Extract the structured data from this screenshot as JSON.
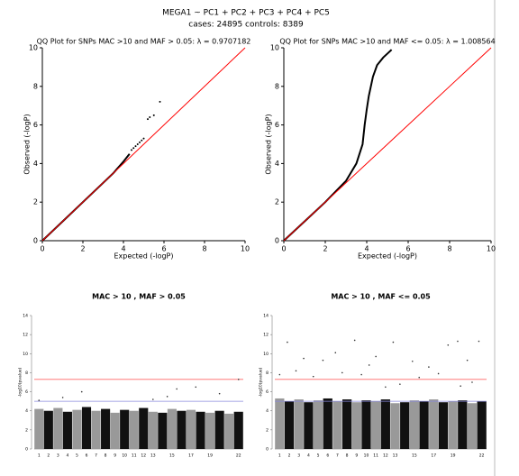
{
  "header": {
    "title": "MEGA1 ~ PC1 + PC2 + PC3 + PC4 + PC5",
    "subtitle": "cases: 24895  controls: 8389"
  },
  "chart_data": [
    {
      "type": "scatter",
      "title": "QQ Plot for SNPs MAC >10 and MAF > 0.05:  λ = 0.9707182",
      "xlabel": "Expected (-logP)",
      "ylabel": "Observed (-logP)",
      "xlim": [
        0,
        10
      ],
      "ylim": [
        0,
        10
      ],
      "xticks": [
        0,
        2,
        4,
        6,
        8,
        10
      ],
      "yticks": [
        0,
        2,
        4,
        6,
        8,
        10
      ],
      "series": [
        {
          "style": "line",
          "color": "#000000",
          "x": [
            0,
            1,
            2,
            3,
            3.5,
            4,
            4.3
          ],
          "values": [
            0,
            1,
            2,
            3,
            3.5,
            4.1,
            4.5
          ]
        },
        {
          "style": "points",
          "color": "#000000",
          "x": [
            4.4,
            4.5,
            4.6,
            4.7,
            4.8,
            4.9,
            5.0,
            5.2,
            5.3,
            5.5,
            5.8
          ],
          "values": [
            4.7,
            4.8,
            4.9,
            5.0,
            5.1,
            5.2,
            5.3,
            6.3,
            6.4,
            6.5,
            7.2
          ]
        },
        {
          "style": "line",
          "color": "#ff0000",
          "x": [
            0,
            10
          ],
          "values": [
            0,
            10
          ]
        }
      ]
    },
    {
      "type": "scatter",
      "title": "QQ Plot for SNPs MAC >10 and MAF <= 0.05:  λ = 1.008564",
      "xlabel": "Expected (-logP)",
      "ylabel": "Observed (-logP)",
      "xlim": [
        0,
        10
      ],
      "ylim": [
        0,
        10
      ],
      "xticks": [
        0,
        2,
        4,
        6,
        8,
        10
      ],
      "yticks": [
        0,
        2,
        4,
        6,
        8,
        10
      ],
      "series": [
        {
          "style": "line",
          "color": "#000000",
          "x": [
            0,
            1,
            2,
            3,
            3.5,
            3.8,
            3.9,
            4.0,
            4.1,
            4.3,
            4.5,
            4.8,
            5.0,
            5.2
          ],
          "values": [
            0,
            1,
            2,
            3.1,
            4,
            5,
            6,
            6.8,
            7.5,
            8.5,
            9.1,
            9.5,
            9.7,
            9.9
          ]
        },
        {
          "style": "line",
          "color": "#ff0000",
          "x": [
            0,
            10
          ],
          "values": [
            0,
            10
          ]
        }
      ]
    },
    {
      "type": "manhattan",
      "title": "MAC > 10 , MAF > 0.05",
      "ylabel": "-log10(pvalue)",
      "xlim": [
        0.5,
        22.5
      ],
      "ylim": [
        0,
        14
      ],
      "yticks": [
        0,
        2,
        4,
        6,
        8,
        10,
        12,
        14
      ],
      "categories": [
        "1",
        "2",
        "3",
        "4",
        "5",
        "6",
        "7",
        "8",
        "9",
        "10",
        "11",
        "12",
        "13",
        null,
        "15",
        null,
        "17",
        null,
        "19",
        null,
        null,
        "22"
      ],
      "values": [
        4.2,
        4.0,
        4.3,
        3.9,
        4.1,
        4.4,
        4.0,
        4.2,
        3.8,
        4.1,
        4.0,
        4.3,
        3.9,
        3.8,
        4.2,
        4.0,
        4.1,
        3.9,
        3.8,
        4.0,
        3.7,
        3.9
      ],
      "colors": [
        "#999999",
        "#111111"
      ],
      "points": {
        "color": "#333333",
        "x": [
          1,
          3.5,
          5.5,
          13,
          14.5,
          15.5,
          17.5,
          20,
          22
        ],
        "values": [
          5.1,
          5.4,
          6.0,
          5.2,
          5.5,
          6.3,
          6.5,
          5.8,
          7.3
        ]
      },
      "hlines": [
        {
          "value": 7.3,
          "color": "#ff6666"
        },
        {
          "value": 5,
          "color": "#8888dd"
        }
      ]
    },
    {
      "type": "manhattan",
      "title": "MAC > 10 , MAF <= 0.05",
      "ylabel": "-log10(pvalue)",
      "xlim": [
        0.5,
        22.5
      ],
      "ylim": [
        0,
        14
      ],
      "yticks": [
        0,
        2,
        4,
        6,
        8,
        10,
        12,
        14
      ],
      "categories": [
        "1",
        "2",
        "3",
        "4",
        "5",
        "6",
        "7",
        "8",
        "9",
        "10",
        "11",
        "12",
        "13",
        null,
        "15",
        null,
        "17",
        null,
        "19",
        null,
        null,
        "22"
      ],
      "values": [
        5.3,
        5.0,
        5.2,
        4.9,
        5.1,
        5.3,
        5.0,
        5.2,
        4.9,
        5.1,
        5.0,
        5.2,
        4.8,
        4.9,
        5.1,
        5.0,
        5.2,
        4.9,
        5.0,
        5.1,
        4.8,
        5.0
      ],
      "colors": [
        "#999999",
        "#111111"
      ],
      "points": {
        "color": "#333333",
        "x": [
          1,
          1.8,
          2.7,
          3.5,
          4.5,
          5.5,
          6.8,
          7.5,
          8.8,
          9.5,
          10.3,
          11,
          12,
          12.8,
          13.5,
          14.8,
          15.5,
          16.5,
          17.5,
          18.5,
          19.5,
          19.8,
          20.5,
          21,
          21.7
        ],
        "values": [
          7.8,
          11.2,
          8.2,
          9.5,
          7.6,
          9.3,
          10.1,
          8.0,
          11.4,
          7.8,
          8.8,
          9.7,
          6.5,
          11.2,
          6.8,
          9.2,
          7.5,
          8.6,
          7.9,
          10.9,
          11.3,
          6.6,
          9.3,
          7.0,
          11.3
        ]
      },
      "hlines": [
        {
          "value": 7.3,
          "color": "#ff6666"
        },
        {
          "value": 5,
          "color": "#8888dd"
        }
      ]
    }
  ]
}
